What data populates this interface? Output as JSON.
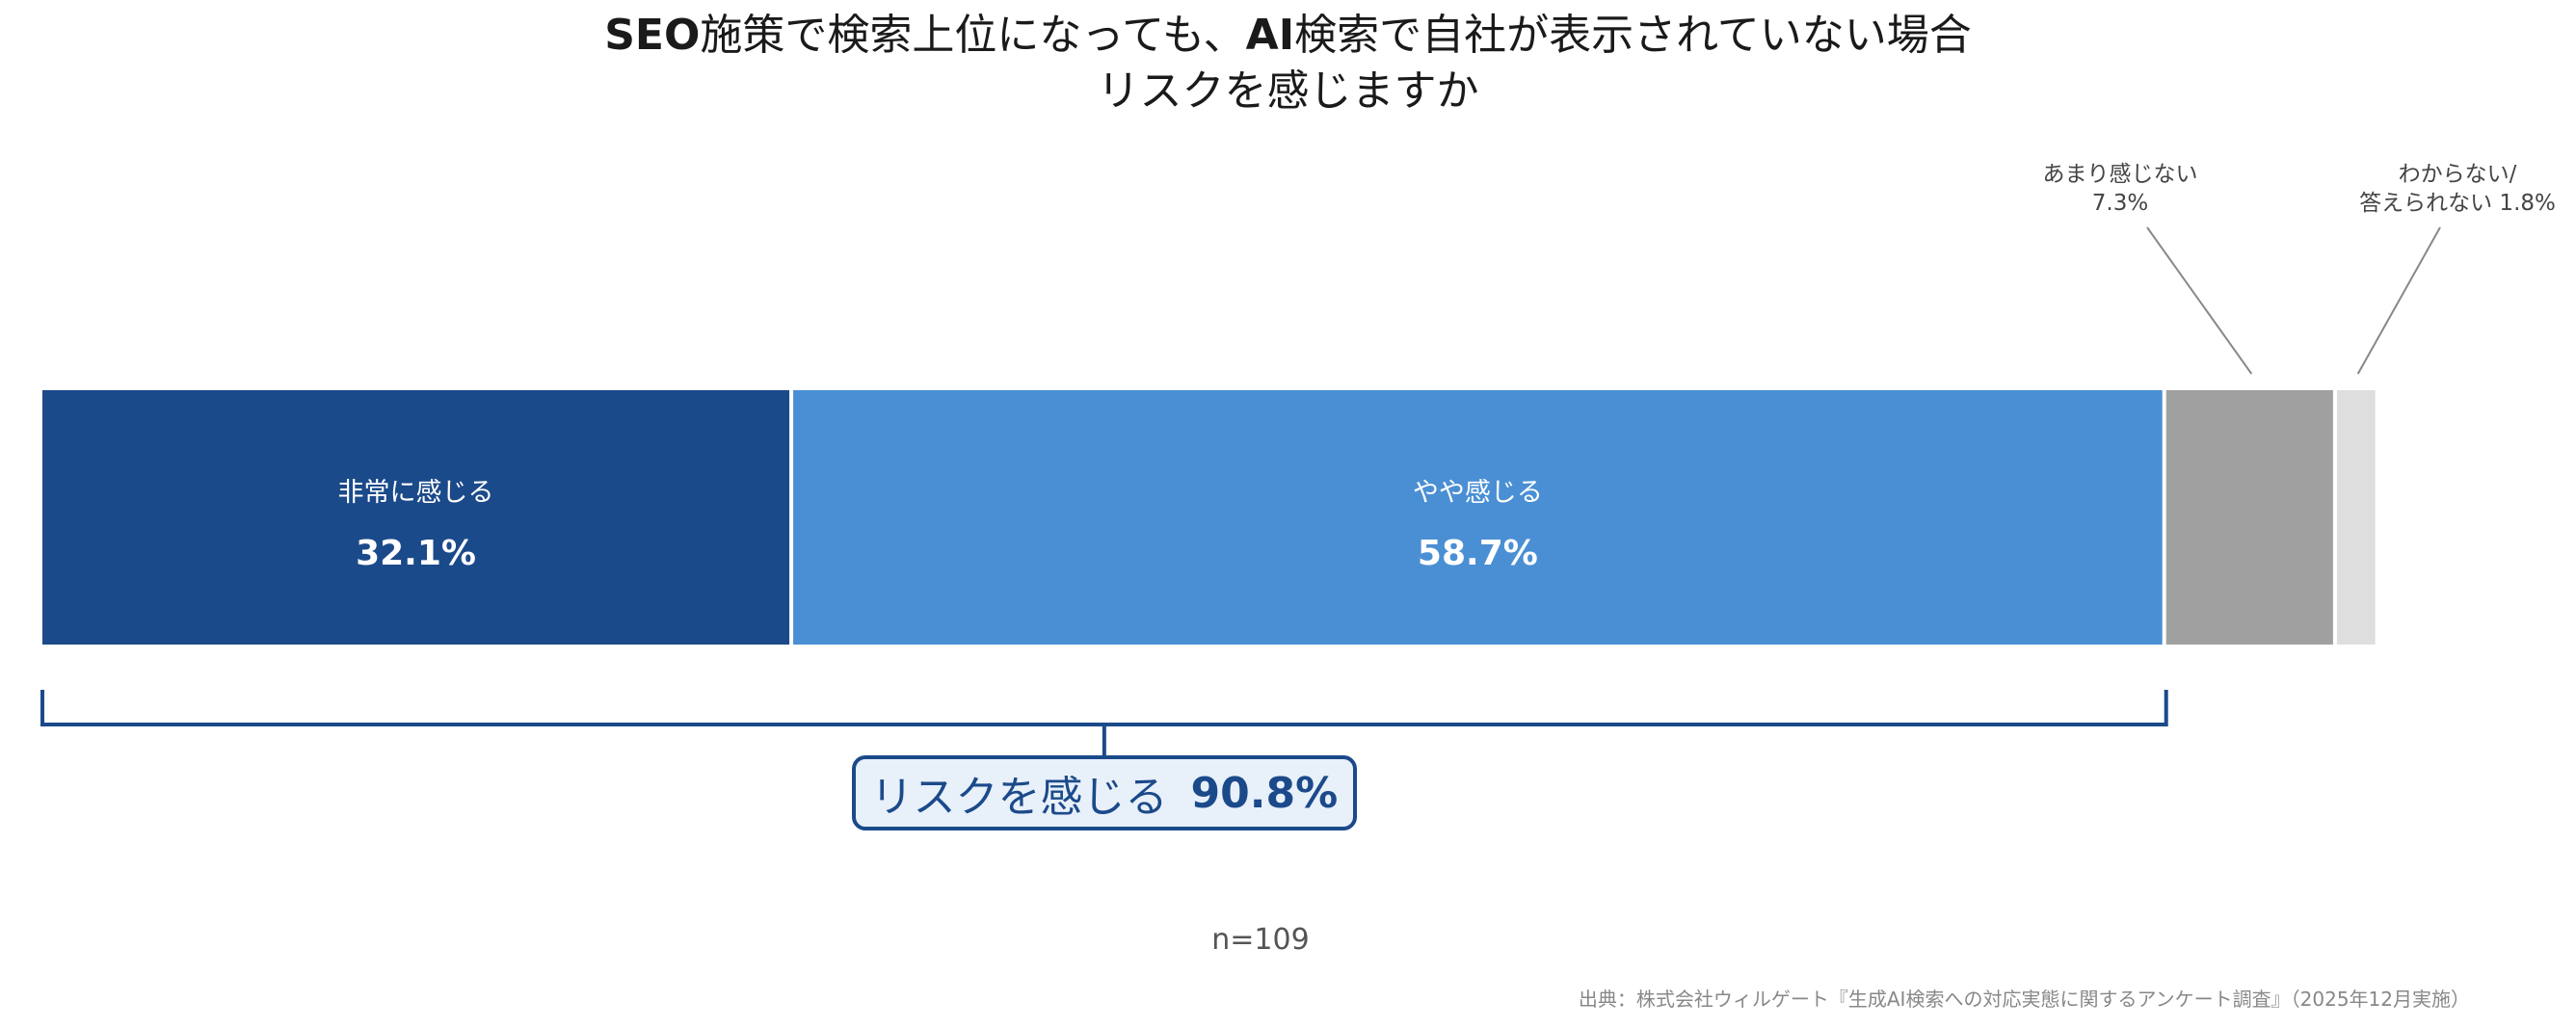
{
  "title": {
    "line1": [
      {
        "text": "SEO",
        "bold": true
      },
      {
        "text": "施策で検索上位になっても、",
        "bold": false
      },
      {
        "text": "AI",
        "bold": true
      },
      {
        "text": "検索で自社が表示されていない場合",
        "bold": false
      }
    ],
    "line2": "リスクを感じますか"
  },
  "chart_data": {
    "type": "bar",
    "orientation": "horizontal-stacked-100",
    "unit": "%",
    "xlim": [
      0,
      100
    ],
    "segments": [
      {
        "name": "非常に感じる",
        "value": 32.1,
        "label": "32.1%",
        "color": "#1b4a8a"
      },
      {
        "name": "やや感じる",
        "value": 58.7,
        "label": "58.7%",
        "color": "#4a8fd4"
      },
      {
        "name": "あまり感じない",
        "value": 7.3,
        "label": "7.3%",
        "color": "#a0a0a0"
      },
      {
        "name": "わからない/答えられない",
        "value": 1.8,
        "label": "1.8%",
        "color": "#dedede"
      }
    ],
    "bracket": {
      "label": "リスクを感じる",
      "value": 90.8,
      "value_label": "90.8%",
      "color": "#1b4a8a"
    }
  },
  "annotations": {
    "somewhat_not": {
      "line1": "あまり感じない",
      "line2": "7.3%"
    },
    "unknown": {
      "line1": "わからない/",
      "line2": "答えられない 1.8%"
    }
  },
  "total": {
    "label": "リスクを感じる",
    "pct": "90.8%"
  },
  "n_label": "n=109",
  "source": "出典：株式会社ウィルゲート『生成AI検索への対応実態に関するアンケート調査』（2025年12月実施）"
}
